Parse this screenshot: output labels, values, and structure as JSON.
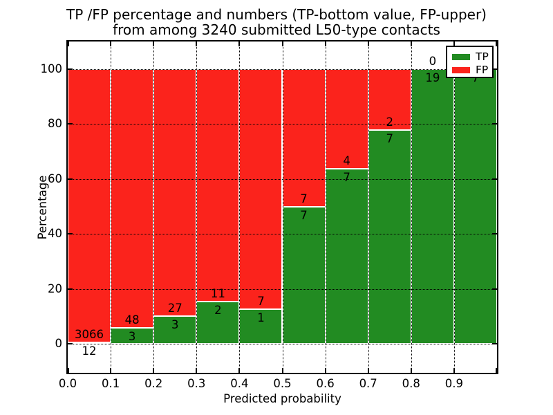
{
  "title": {
    "line1": "TP /FP percentage and numbers (TP-bottom value, FP-upper)",
    "line2": "from among 3240 submitted L50-type contacts"
  },
  "axes": {
    "xlabel": "Predicted probability",
    "ylabel": "Percentage",
    "x_tick_labels": [
      "0.0",
      "0.1",
      "0.2",
      "0.3",
      "0.4",
      "0.5",
      "0.6",
      "0.7",
      "0.8",
      "0.9"
    ],
    "y_tick_labels": [
      "0",
      "20",
      "40",
      "60",
      "80",
      "100"
    ],
    "y_tick_values": [
      0,
      20,
      40,
      60,
      80,
      100
    ]
  },
  "legend": {
    "position": "upper right",
    "items": [
      {
        "label": "TP",
        "color": "#228b22"
      },
      {
        "label": "FP",
        "color": "#fb231c"
      }
    ]
  },
  "colors": {
    "tp_green": "#228b22",
    "fp_red": "#fb231c",
    "background": "#ffffff",
    "text": "#000000",
    "grid": "#000000",
    "bar_edge": "#ffffff"
  },
  "chart_data": {
    "type": "bar",
    "stacked": true,
    "title": "TP /FP percentage and numbers (TP-bottom value, FP-upper) from among 3240 submitted L50-type contacts",
    "xlabel": "Predicted probability",
    "ylabel": "Percentage",
    "total_contacts": 3240,
    "bin_width": 0.1,
    "x_bins": [
      [
        0.0,
        0.1
      ],
      [
        0.1,
        0.2
      ],
      [
        0.2,
        0.3
      ],
      [
        0.3,
        0.4
      ],
      [
        0.4,
        0.5
      ],
      [
        0.5,
        0.6
      ],
      [
        0.6,
        0.7
      ],
      [
        0.7,
        0.8
      ],
      [
        0.8,
        0.9
      ],
      [
        0.9,
        1.0
      ]
    ],
    "series": [
      {
        "name": "TP",
        "stack_position": "bottom",
        "color": "#228b22",
        "counts": [
          12,
          3,
          3,
          2,
          1,
          7,
          7,
          7,
          19,
          7
        ]
      },
      {
        "name": "FP",
        "stack_position": "top",
        "color": "#fb231c",
        "counts": [
          3066,
          48,
          27,
          11,
          7,
          7,
          4,
          2,
          0,
          0
        ]
      }
    ],
    "tp_percent_per_bin": [
      0.39,
      5.88,
      10.0,
      15.38,
      12.5,
      50.0,
      63.64,
      77.78,
      100.0,
      100.0
    ],
    "bar_unit": "percent_of_bin_total",
    "xlim": [
      0.0,
      1.0
    ],
    "ylim": [
      0,
      100
    ],
    "grid": "dotted",
    "legend_position": "upper right"
  }
}
